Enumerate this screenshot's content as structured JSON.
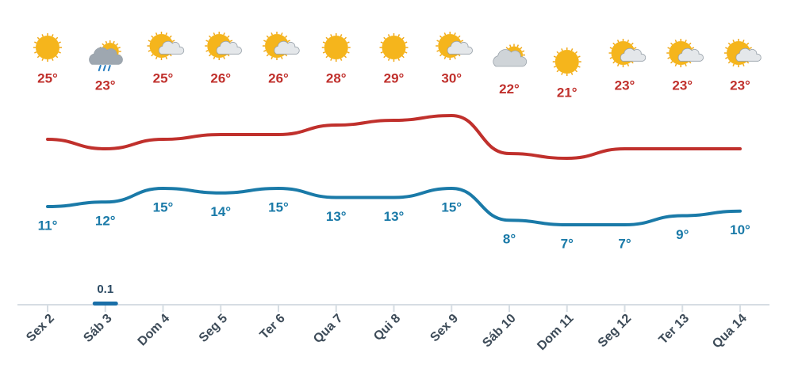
{
  "chart_data": {
    "type": "line",
    "categories": [
      "Sex 2",
      "Sáb 3",
      "Dom 4",
      "Seg 5",
      "Ter 6",
      "Qua 7",
      "Qui 8",
      "Sex 9",
      "Sáb 10",
      "Dom 11",
      "Seg 12",
      "Ter 13",
      "Qua 14"
    ],
    "series": [
      {
        "name": "max",
        "color": "#c0302c",
        "values": [
          25,
          23,
          25,
          26,
          26,
          28,
          29,
          30,
          22,
          21,
          23,
          23,
          23
        ],
        "value_labels": [
          "25°",
          "23°",
          "25°",
          "26°",
          "26°",
          "28°",
          "29°",
          "30°",
          "22°",
          "21°",
          "23°",
          "23°",
          "23°"
        ]
      },
      {
        "name": "min",
        "color": "#1a7aa8",
        "values": [
          11,
          12,
          15,
          14,
          15,
          13,
          13,
          15,
          8,
          7,
          7,
          9,
          10
        ],
        "value_labels": [
          "11°",
          "12°",
          "15°",
          "14°",
          "15°",
          "13°",
          "13°",
          "15°",
          "8°",
          "7°",
          "7°",
          "9°",
          "10°"
        ]
      }
    ],
    "precipitation": {
      "color": "#1a6fa8",
      "values": [
        null,
        0.1,
        null,
        null,
        null,
        null,
        null,
        null,
        null,
        null,
        null,
        null,
        null
      ]
    }
  }
}
